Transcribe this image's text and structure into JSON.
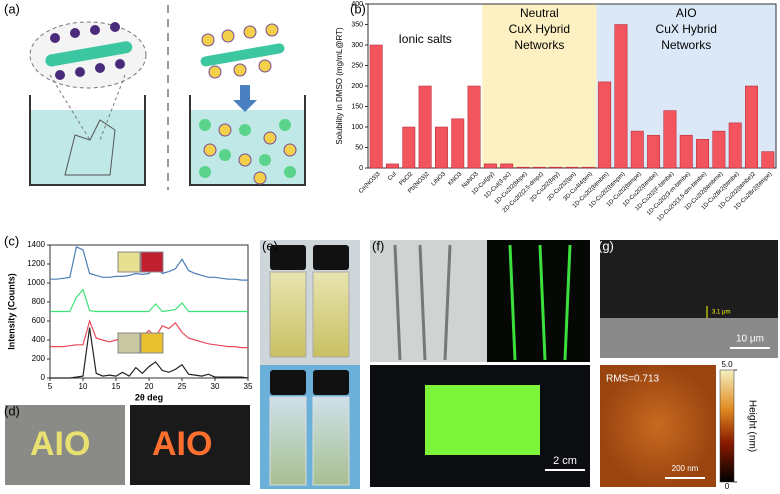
{
  "panel_labels": [
    "(a)",
    "(b)",
    "(c)",
    "(d)",
    "(e)",
    "(f)",
    "(g)"
  ],
  "d_text": [
    "AIO",
    "AIO"
  ],
  "f_scale": "2 cm",
  "g": {
    "thickness": "3.1 μm",
    "scale_top": "10 μm",
    "rms": "RMS=0.713",
    "colorbar_label": "Height (nm)",
    "colorbar_range": [
      0,
      5
    ],
    "colorbar_ticks": [
      0,
      {
        "value": 5,
        "label": "5.0"
      }
    ],
    "scale_bottom": "200 nm"
  },
  "chart_data": [
    {
      "type": "bar",
      "ylabel": "Solubility in DMSO (mg/mL@RT)",
      "annotations": [
        [
          "Ionic salts"
        ],
        [
          "Neutral",
          "CuX Hybrid",
          "Networks"
        ],
        [
          "AIO",
          "CuX Hybrid",
          "Networks"
        ]
      ],
      "categories": [
        "Ce(NO3)3",
        "CuI",
        "PbCl2",
        "Pb(NO3)2",
        "LiNO3",
        "KNO3",
        "NaNO3",
        "1D-CuI(py)",
        "1D-CuI(3-pc)",
        "1D-Cu2I2(bbpe)",
        "2D-Cu2I2(2,5-dmpz)",
        "2D-Cu2I2(bpy)",
        "2D-Cu2I2(tpn)",
        "3D-Cu4I4(ten)",
        "1D-Cu2I2(btmbm)",
        "1D-Cu2I2(btmpm)",
        "1D-Cu2I2(btmpe)",
        "1D-Cu2I2(btmbe)",
        "1D-Cu2I2(F-btmbe)",
        "1D-Cu2I2(3-m-btmbe)",
        "1D-Cu2I2(3,5-dm-btmbe)",
        "1D-Cu2I2(btmbme)",
        "1D-Cu2Br2(btmbe)",
        "1D-Cu2I2(btmbe)2",
        "1D-Cu2Br2(btmpe)"
      ],
      "values": [
        300,
        10,
        100,
        200,
        100,
        120,
        200,
        10,
        10,
        2,
        2,
        2,
        2,
        2,
        210,
        350,
        90,
        80,
        140,
        80,
        70,
        90,
        110,
        200,
        40
      ],
      "color": "#f2555e",
      "ylim": [
        0,
        400
      ],
      "yticks": [
        0,
        50,
        100,
        150,
        200,
        250,
        300,
        350,
        400
      ]
    },
    {
      "type": "line",
      "xlabel": "2θ deg",
      "ylabel": "Intensity (Counts)",
      "x": [
        5,
        6,
        7,
        8,
        9,
        10,
        11,
        12,
        13,
        14,
        15,
        16,
        17,
        18,
        19,
        20,
        21,
        22,
        23,
        24,
        25,
        26,
        27,
        28,
        29,
        30,
        31,
        32,
        33,
        34,
        35
      ],
      "series": [
        {
          "color": "#4a7fb5",
          "values": [
            1040,
            1040,
            1050,
            1060,
            1380,
            1350,
            1100,
            1080,
            1060,
            1060,
            1070,
            1070,
            1080,
            1100,
            1090,
            1100,
            1180,
            1100,
            1120,
            1150,
            1250,
            1130,
            1100,
            1080,
            1060,
            1060,
            1050,
            1040,
            1040,
            1030,
            1030
          ]
        },
        {
          "color": "#3fe07a",
          "values": [
            700,
            700,
            700,
            700,
            850,
            930,
            710,
            700,
            700,
            700,
            700,
            700,
            700,
            700,
            700,
            700,
            780,
            700,
            710,
            720,
            790,
            700,
            700,
            700,
            700,
            700,
            700,
            700,
            700,
            700,
            700
          ]
        },
        {
          "color": "#e84a5a",
          "values": [
            330,
            330,
            330,
            340,
            350,
            350,
            600,
            420,
            400,
            380,
            400,
            420,
            440,
            470,
            440,
            500,
            430,
            550,
            520,
            580,
            480,
            420,
            400,
            380,
            360,
            350,
            340,
            330,
            330,
            320,
            320
          ]
        },
        {
          "color": "#222222",
          "values": [
            0,
            0,
            0,
            0,
            10,
            20,
            530,
            50,
            20,
            30,
            20,
            60,
            20,
            110,
            50,
            120,
            170,
            80,
            60,
            90,
            140,
            40,
            30,
            20,
            40,
            10,
            10,
            10,
            10,
            10,
            0
          ]
        }
      ],
      "xlim": [
        5,
        35
      ],
      "ylim": [
        0,
        1400
      ],
      "xticks": [
        5,
        10,
        15,
        20,
        25,
        30,
        35
      ],
      "yticks": [
        0,
        200,
        400,
        600,
        800,
        1000,
        1200,
        1400
      ]
    }
  ]
}
